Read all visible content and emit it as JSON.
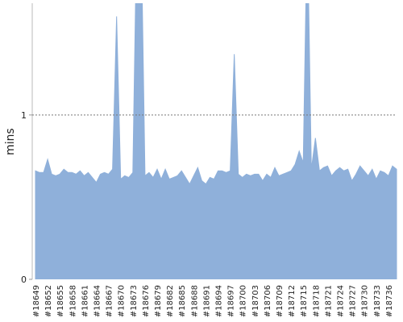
{
  "chart_data": {
    "type": "area",
    "y_label": "mins",
    "color": "#8fb0da",
    "grid": true,
    "categories": [
      "#18649",
      null,
      null,
      "#18652",
      null,
      null,
      "#18655",
      null,
      null,
      "#18658",
      null,
      null,
      "#18661",
      null,
      null,
      "#18664",
      null,
      null,
      "#18667",
      null,
      null,
      "#18670",
      null,
      null,
      "#18673",
      null,
      null,
      "#18676",
      null,
      null,
      "#18679",
      null,
      null,
      "#18682",
      null,
      null,
      "#18685",
      null,
      null,
      "#18688",
      null,
      null,
      "#18691",
      null,
      null,
      "#18694",
      null,
      null,
      "#18697",
      null,
      null,
      "#18700",
      null,
      null,
      "#18703",
      null,
      null,
      "#18706",
      null,
      null,
      "#18709",
      null,
      null,
      "#18712",
      null,
      null,
      "#18715",
      null,
      null,
      "#18718",
      null,
      null,
      "#18721",
      null,
      null,
      "#18724",
      null,
      null,
      "#18727",
      null,
      null,
      "#18730",
      null,
      null,
      "#18733",
      null,
      null,
      "#18736",
      null,
      null
    ],
    "values": [
      0.66,
      0.65,
      0.65,
      0.73,
      0.64,
      0.63,
      0.64,
      0.67,
      0.65,
      0.65,
      0.64,
      0.66,
      0.63,
      0.65,
      0.62,
      0.59,
      0.64,
      0.65,
      0.64,
      0.67,
      1.6,
      0.61,
      0.63,
      0.62,
      0.65,
      2.2,
      2.2,
      0.63,
      0.65,
      0.62,
      0.67,
      0.61,
      0.67,
      0.61,
      0.62,
      0.63,
      0.66,
      0.62,
      0.58,
      0.63,
      0.68,
      0.6,
      0.58,
      0.62,
      0.61,
      0.66,
      0.66,
      0.65,
      0.66,
      1.37,
      0.64,
      0.62,
      0.64,
      0.63,
      0.64,
      0.64,
      0.6,
      0.64,
      0.62,
      0.68,
      0.63,
      0.64,
      0.65,
      0.66,
      0.7,
      0.78,
      0.71,
      2.2,
      0.67,
      0.86,
      0.66,
      0.68,
      0.69,
      0.63,
      0.66,
      0.68,
      0.66,
      0.67,
      0.6,
      0.64,
      0.69,
      0.66,
      0.63,
      0.67,
      0.61,
      0.66,
      0.65,
      0.63,
      0.69,
      0.67
    ],
    "ylim": [
      0,
      1.68
    ],
    "yticks": [
      0,
      1
    ]
  }
}
